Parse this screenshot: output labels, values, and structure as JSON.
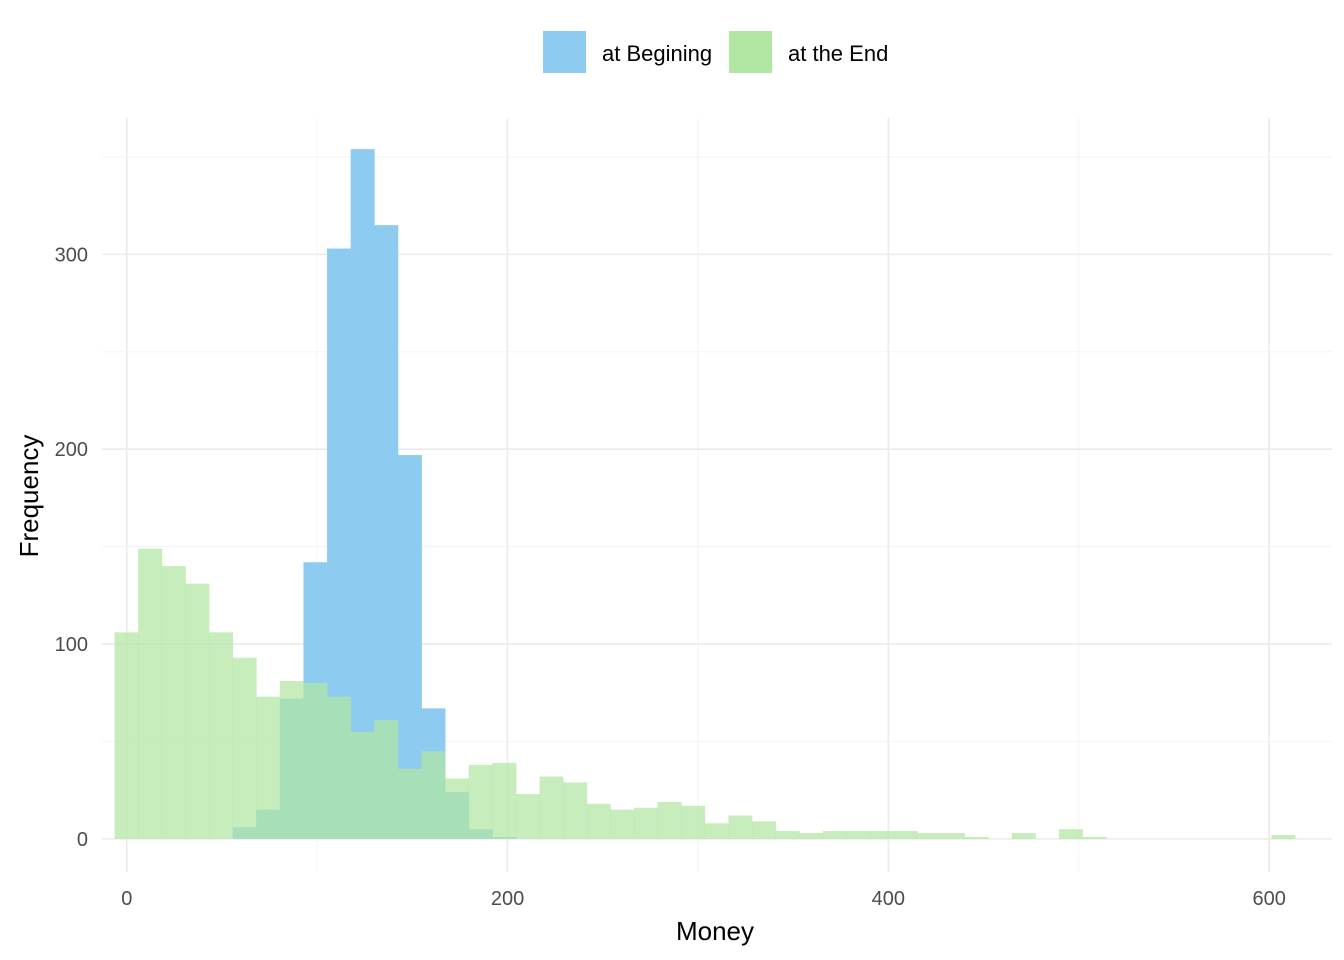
{
  "chart_data": {
    "type": "bar",
    "subtype": "overlapping-histogram",
    "title": "",
    "xlabel": "Money",
    "ylabel": "Frequency",
    "xlim": [
      -13,
      633
    ],
    "ylim": [
      -17,
      370
    ],
    "x_ticks": [
      0,
      200,
      400,
      600
    ],
    "y_ticks": [
      0,
      100,
      200,
      300
    ],
    "grid": true,
    "legend": {
      "position": "top",
      "entries": [
        "at Begining",
        "at the End"
      ]
    },
    "bin_width": 12.4,
    "bin_start": -6.4,
    "series": [
      {
        "name": "at Begining",
        "color": "#8ecbf0",
        "values": [
          0,
          0,
          0,
          0,
          0,
          6,
          15,
          72,
          142,
          303,
          354,
          315,
          197,
          67,
          24,
          5,
          1
        ]
      },
      {
        "name": "at the End",
        "color": "#b1e6a3",
        "values": [
          106,
          149,
          140,
          131,
          106,
          93,
          73,
          81,
          80,
          73,
          55,
          61,
          36,
          45,
          31,
          38,
          39,
          23,
          32,
          29,
          18,
          15,
          16,
          19,
          17,
          8,
          12,
          9,
          4,
          3,
          4,
          4,
          4,
          4,
          3,
          3,
          1,
          0,
          3,
          0,
          5,
          1,
          0,
          0,
          0,
          0,
          0,
          0,
          0,
          2,
          0,
          0,
          0,
          0,
          1
        ]
      }
    ]
  }
}
